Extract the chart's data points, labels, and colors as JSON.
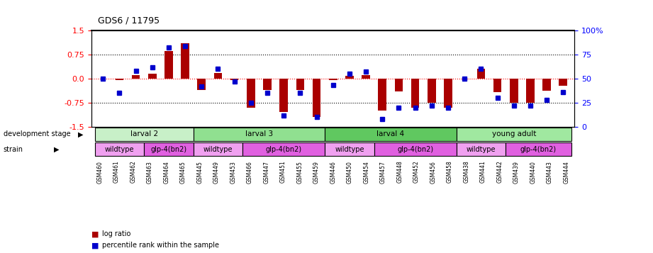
{
  "title": "GDS6 / 11795",
  "samples": [
    "GSM460",
    "GSM461",
    "GSM462",
    "GSM463",
    "GSM464",
    "GSM465",
    "GSM445",
    "GSM449",
    "GSM453",
    "GSM466",
    "GSM447",
    "GSM451",
    "GSM455",
    "GSM459",
    "GSM446",
    "GSM450",
    "GSM454",
    "GSM457",
    "GSM448",
    "GSM452",
    "GSM456",
    "GSM458",
    "GSM438",
    "GSM441",
    "GSM442",
    "GSM439",
    "GSM440",
    "GSM443",
    "GSM444"
  ],
  "log_ratio": [
    0.0,
    -0.05,
    0.1,
    0.15,
    0.85,
    1.1,
    -0.35,
    0.18,
    -0.05,
    -0.9,
    -0.35,
    -1.05,
    -0.35,
    -1.2,
    -0.05,
    0.08,
    0.1,
    -1.0,
    -0.4,
    -0.9,
    -0.75,
    -0.9,
    0.0,
    0.3,
    -0.42,
    -0.75,
    -0.75,
    -0.38,
    -0.22
  ],
  "percentile": [
    50,
    35,
    58,
    62,
    82,
    84,
    42,
    60,
    47,
    25,
    35,
    12,
    35,
    10,
    43,
    55,
    57,
    8,
    20,
    20,
    22,
    20,
    50,
    60,
    30,
    22,
    22,
    28,
    36
  ],
  "dev_stages": [
    {
      "label": "larval 2",
      "start": 0,
      "end": 6,
      "color": "#c8f0c8"
    },
    {
      "label": "larval 3",
      "start": 6,
      "end": 14,
      "color": "#90e090"
    },
    {
      "label": "larval 4",
      "start": 14,
      "end": 22,
      "color": "#60c860"
    },
    {
      "label": "young adult",
      "start": 22,
      "end": 29,
      "color": "#a0e8a0"
    }
  ],
  "strains": [
    {
      "label": "wildtype",
      "start": 0,
      "end": 3,
      "color": "#f0a0f0"
    },
    {
      "label": "glp-4(bn2)",
      "start": 3,
      "end": 6,
      "color": "#e060e0"
    },
    {
      "label": "wildtype",
      "start": 6,
      "end": 9,
      "color": "#f0a0f0"
    },
    {
      "label": "glp-4(bn2)",
      "start": 9,
      "end": 14,
      "color": "#e060e0"
    },
    {
      "label": "wildtype",
      "start": 14,
      "end": 17,
      "color": "#f0a0f0"
    },
    {
      "label": "glp-4(bn2)",
      "start": 17,
      "end": 22,
      "color": "#e060e0"
    },
    {
      "label": "wildtype",
      "start": 22,
      "end": 25,
      "color": "#f0a0f0"
    },
    {
      "label": "glp-4(bn2)",
      "start": 25,
      "end": 29,
      "color": "#e060e0"
    }
  ],
  "bar_color": "#aa0000",
  "dot_color": "#0000cc",
  "ylim": [
    -1.5,
    1.5
  ],
  "y2lim": [
    0,
    100
  ],
  "yticks_left": [
    -1.5,
    -0.75,
    0.0,
    0.75,
    1.5
  ],
  "yticks_right": [
    0,
    25,
    50,
    75,
    100
  ],
  "ytick_labels_right": [
    "0",
    "25",
    "50",
    "75",
    "100%"
  ],
  "hlines": [
    -0.75,
    0.0,
    0.75
  ],
  "background_color": "#ffffff"
}
